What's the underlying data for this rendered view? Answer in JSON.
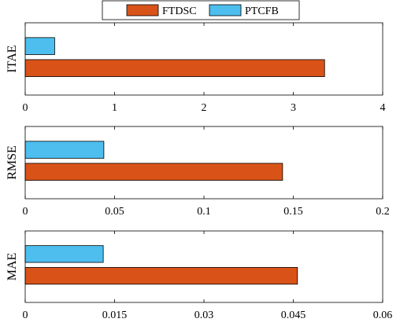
{
  "chart_data": [
    {
      "type": "bar",
      "orientation": "horizontal",
      "ylabel": "ITAE",
      "xlim": [
        0,
        4
      ],
      "xticks": [
        "0",
        "1",
        "2",
        "3",
        "4"
      ],
      "series": [
        {
          "name": "FTDSC",
          "value": 3.35
        },
        {
          "name": "PTCFB",
          "value": 0.33
        }
      ]
    },
    {
      "type": "bar",
      "orientation": "horizontal",
      "ylabel": "RMSE",
      "xlim": [
        0,
        0.2
      ],
      "xticks": [
        "0",
        "0.05",
        "0.1",
        "0.15",
        "0.2"
      ],
      "series": [
        {
          "name": "FTDSC",
          "value": 0.144
        },
        {
          "name": "PTCFB",
          "value": 0.044
        }
      ]
    },
    {
      "type": "bar",
      "orientation": "horizontal",
      "ylabel": "MAE",
      "xlim": [
        0,
        0.06
      ],
      "xticks": [
        "0",
        "0.015",
        "0.03",
        "0.045",
        "0.06"
      ],
      "series": [
        {
          "name": "FTDSC",
          "value": 0.0457
        },
        {
          "name": "PTCFB",
          "value": 0.0131
        }
      ]
    }
  ],
  "legend": {
    "items": [
      {
        "label": "FTDSC",
        "color": "#D95319"
      },
      {
        "label": "PTCFB",
        "color": "#4DBEEE"
      }
    ],
    "placement": "top-center"
  },
  "colors": {
    "FTDSC": "#D95319",
    "PTCFB": "#4DBEEE"
  }
}
